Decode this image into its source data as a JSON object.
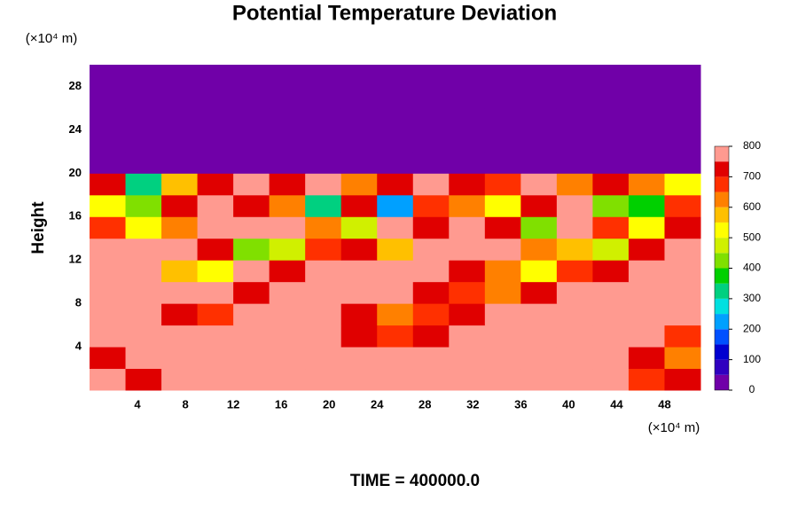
{
  "chart_data": {
    "type": "contour",
    "title": "Potential Temperature Deviation",
    "ylabel": "Height",
    "yunit": "(×10⁴ m)",
    "xunit": "(×10⁴ m)",
    "footer": "TIME = 400000.0",
    "xlim": [
      0,
      51
    ],
    "ylim": [
      0,
      30
    ],
    "xticks": [
      4,
      8,
      12,
      16,
      20,
      24,
      28,
      32,
      36,
      40,
      44,
      48
    ],
    "yticks": [
      4,
      8,
      12,
      16,
      20,
      24,
      28
    ],
    "x": [
      1.5,
      4.5,
      7.5,
      10.5,
      13.5,
      16.5,
      19.5,
      22.5,
      25.5,
      28.5,
      31.5,
      34.5,
      37.5,
      40.5,
      43.5,
      46.5,
      49.5
    ],
    "y": [
      1,
      3,
      5,
      7,
      9,
      11,
      13,
      15,
      17,
      19,
      21,
      23,
      25,
      27,
      29
    ],
    "z": [
      [
        750,
        700,
        800,
        800,
        800,
        800,
        800,
        800,
        800,
        800,
        800,
        800,
        800,
        800,
        800,
        650,
        700
      ],
      [
        700,
        750,
        800,
        800,
        800,
        800,
        800,
        800,
        750,
        800,
        800,
        800,
        800,
        800,
        800,
        700,
        600
      ],
      [
        800,
        800,
        800,
        750,
        800,
        800,
        800,
        700,
        650,
        700,
        800,
        800,
        800,
        800,
        800,
        800,
        650
      ],
      [
        800,
        800,
        700,
        650,
        750,
        800,
        800,
        700,
        600,
        650,
        700,
        800,
        800,
        800,
        800,
        800,
        800
      ],
      [
        800,
        800,
        800,
        750,
        700,
        750,
        800,
        800,
        750,
        700,
        650,
        600,
        700,
        800,
        800,
        800,
        800
      ],
      [
        800,
        800,
        550,
        500,
        800,
        700,
        800,
        800,
        800,
        750,
        700,
        600,
        500,
        650,
        700,
        750,
        800
      ],
      [
        750,
        800,
        800,
        700,
        400,
        450,
        650,
        700,
        550,
        800,
        800,
        750,
        600,
        550,
        450,
        700,
        750
      ],
      [
        650,
        500,
        600,
        800,
        800,
        800,
        600,
        450,
        800,
        700,
        800,
        700,
        400,
        800,
        650,
        500,
        700
      ],
      [
        500,
        400,
        700,
        800,
        700,
        600,
        300,
        700,
        200,
        650,
        600,
        500,
        700,
        750,
        400,
        350,
        650
      ],
      [
        700,
        300,
        550,
        700,
        800,
        700,
        750,
        600,
        700,
        800,
        700,
        650,
        750,
        600,
        700,
        600,
        500
      ],
      [
        0,
        0,
        0,
        0,
        0,
        0,
        0,
        0,
        0,
        0,
        0,
        0,
        0,
        0,
        0,
        0,
        0
      ],
      [
        0,
        0,
        0,
        0,
        0,
        0,
        0,
        0,
        0,
        0,
        0,
        0,
        0,
        0,
        0,
        0,
        0
      ],
      [
        0,
        0,
        0,
        0,
        0,
        0,
        0,
        0,
        0,
        0,
        0,
        0,
        0,
        0,
        0,
        0,
        0
      ],
      [
        0,
        0,
        0,
        0,
        0,
        0,
        0,
        0,
        0,
        0,
        0,
        0,
        0,
        0,
        0,
        0,
        0
      ],
      [
        0,
        0,
        0,
        0,
        0,
        0,
        0,
        0,
        0,
        0,
        0,
        0,
        0,
        0,
        0,
        0,
        0
      ]
    ],
    "levels": [
      0,
      50,
      100,
      150,
      200,
      250,
      300,
      350,
      400,
      450,
      500,
      550,
      600,
      650,
      700,
      750,
      800
    ],
    "colors": [
      "#7000a8",
      "#3000c0",
      "#0000d0",
      "#0050ff",
      "#00a0ff",
      "#00e0e0",
      "#00d080",
      "#00d000",
      "#80e000",
      "#d0f000",
      "#ffff00",
      "#ffc000",
      "#ff8000",
      "#ff3000",
      "#e00000",
      "#ff9a90"
    ],
    "clim": [
      0,
      800
    ],
    "cticks": [
      0,
      100,
      200,
      300,
      400,
      500,
      600,
      700,
      800
    ]
  }
}
